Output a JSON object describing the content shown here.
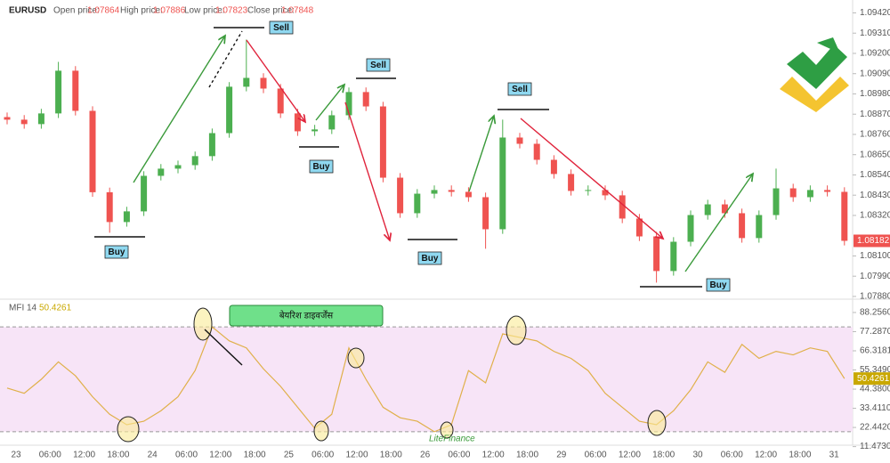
{
  "chart_data": {
    "type": "candlestick",
    "symbol": "EURUSD",
    "info": [
      {
        "label": "Open price:",
        "value": 1.07864
      },
      {
        "label": "High price:",
        "value": 1.07886
      },
      {
        "label": "Low price:",
        "value": 1.07823
      },
      {
        "label": "Close price:",
        "value": 1.07848
      }
    ],
    "up_color": "#4caf50",
    "down_color": "#ef5350",
    "ylim": [
      1.0787,
      1.0949
    ],
    "yticks": [
      {
        "value": 1.0942,
        "label": "1.09420"
      },
      {
        "value": 1.0931,
        "label": "1.09310"
      },
      {
        "value": 1.092,
        "label": "1.09200"
      },
      {
        "value": 1.0909,
        "label": "1.09090"
      },
      {
        "value": 1.0898,
        "label": "1.08980"
      },
      {
        "value": 1.0887,
        "label": "1.08870"
      },
      {
        "value": 1.0876,
        "label": "1.08760"
      },
      {
        "value": 1.0865,
        "label": "1.08650"
      },
      {
        "value": 1.0854,
        "label": "1.08540"
      },
      {
        "value": 1.0843,
        "label": "1.08430"
      },
      {
        "value": 1.0832,
        "label": "1.08320"
      },
      {
        "value": 1.081,
        "label": "1.08100"
      },
      {
        "value": 1.0799,
        "label": "1.07990"
      },
      {
        "value": 1.0788,
        "label": "1.07880"
      }
    ],
    "x_labels": [
      "23",
      "06:00",
      "12:00",
      "18:00",
      "24",
      "06:00",
      "12:00",
      "18:00",
      "25",
      "06:00",
      "12:00",
      "18:00",
      "26",
      "06:00",
      "12:00",
      "18:00",
      "29",
      "06:00",
      "12:00",
      "18:00",
      "30",
      "06:00",
      "12:00",
      "18:00",
      "31"
    ],
    "candles": [
      [
        1.08854,
        1.08879,
        1.08815,
        1.0884
      ],
      [
        1.0884,
        1.08865,
        1.08791,
        1.08816
      ],
      [
        1.08816,
        1.08899,
        1.08791,
        1.08874
      ],
      [
        1.08874,
        1.09154,
        1.08849,
        1.09106
      ],
      [
        1.09106,
        1.09131,
        1.08863,
        1.08888
      ],
      [
        1.08888,
        1.08913,
        1.08421,
        1.08446
      ],
      [
        1.08446,
        1.08471,
        1.08226,
        1.08284
      ],
      [
        1.08284,
        1.08367,
        1.08259,
        1.08342
      ],
      [
        1.08342,
        1.0856,
        1.08317,
        1.08535
      ],
      [
        1.08535,
        1.08599,
        1.0851,
        1.08574
      ],
      [
        1.08574,
        1.08618,
        1.08549,
        1.08593
      ],
      [
        1.08593,
        1.08667,
        1.08568,
        1.08642
      ],
      [
        1.08642,
        1.08792,
        1.08617,
        1.08767
      ],
      [
        1.08767,
        1.09044,
        1.08742,
        1.09019
      ],
      [
        1.09019,
        1.09275,
        1.08994,
        1.09067
      ],
      [
        1.09067,
        1.09092,
        1.08984,
        1.09009
      ],
      [
        1.09009,
        1.09034,
        1.08849,
        1.08874
      ],
      [
        1.08874,
        1.08899,
        1.08752,
        1.08777
      ],
      [
        1.08777,
        1.08812,
        1.08752,
        1.08787
      ],
      [
        1.08787,
        1.08889,
        1.08762,
        1.08864
      ],
      [
        1.08864,
        1.09015,
        1.08839,
        1.0899
      ],
      [
        1.0899,
        1.09015,
        1.08887,
        1.08912
      ],
      [
        1.08912,
        1.08937,
        1.085,
        1.08525
      ],
      [
        1.08525,
        1.0855,
        1.08307,
        1.08332
      ],
      [
        1.08332,
        1.08463,
        1.08307,
        1.08438
      ],
      [
        1.08438,
        1.08483,
        1.08413,
        1.08458
      ],
      [
        1.08458,
        1.08483,
        1.08423,
        1.08448
      ],
      [
        1.08448,
        1.08473,
        1.08394,
        1.08419
      ],
      [
        1.08419,
        1.08444,
        1.08139,
        1.08245
      ],
      [
        1.08245,
        1.0884,
        1.0822,
        1.08743
      ],
      [
        1.08743,
        1.08768,
        1.08684,
        1.08709
      ],
      [
        1.08709,
        1.08734,
        1.08597,
        1.08622
      ],
      [
        1.08622,
        1.08647,
        1.0852,
        1.08545
      ],
      [
        1.08545,
        1.0857,
        1.08428,
        1.08453
      ],
      [
        1.08453,
        1.08483,
        1.08428,
        1.08458
      ],
      [
        1.08458,
        1.08483,
        1.08404,
        1.08429
      ],
      [
        1.08429,
        1.08454,
        1.08278,
        1.08303
      ],
      [
        1.08303,
        1.08328,
        1.08181,
        1.08206
      ],
      [
        1.08206,
        1.08231,
        1.07955,
        1.08018
      ],
      [
        1.08018,
        1.08202,
        1.07993,
        1.08177
      ],
      [
        1.08177,
        1.08347,
        1.08152,
        1.08322
      ],
      [
        1.08322,
        1.08405,
        1.08297,
        1.0838
      ],
      [
        1.0838,
        1.08405,
        1.08307,
        1.08332
      ],
      [
        1.08332,
        1.08357,
        1.08172,
        1.08197
      ],
      [
        1.08197,
        1.08347,
        1.08172,
        1.08322
      ],
      [
        1.08322,
        1.08574,
        1.08297,
        1.08467
      ],
      [
        1.08467,
        1.08492,
        1.08394,
        1.08419
      ],
      [
        1.08419,
        1.08483,
        1.08394,
        1.08458
      ],
      [
        1.08458,
        1.08483,
        1.08423,
        1.08448
      ],
      [
        1.08448,
        1.08473,
        1.08157,
        1.08182
      ]
    ],
    "annotations": [
      "Sell",
      "Sell",
      "Sell",
      "Buy",
      "Buy",
      "Buy",
      "Buy"
    ],
    "divergence_label": "बेयरिश डाइवर्जेंस",
    "watermark": "LiteFinance",
    "mfi": {
      "name": "MFI 14",
      "color": "#e0b04a",
      "band_color": "#f7e4f7",
      "levels": [
        80,
        20
      ],
      "ylim": [
        9.74,
        94.86
      ],
      "yticks": [
        {
          "value": 88.256,
          "label": "88.2560"
        },
        {
          "value": 77.287,
          "label": "77.2870"
        },
        66.3181,
        {
          "value": 55.349,
          "label": "55.3490"
        },
        {
          "value": 44.38,
          "label": "44.3800"
        },
        {
          "value": 33.411,
          "label": "33.4110"
        },
        {
          "value": 22.442,
          "label": "22.4420"
        },
        {
          "value": 11.473,
          "label": "11.4730"
        }
      ],
      "values": [
        45,
        42,
        50,
        60,
        52,
        40,
        30,
        24,
        26,
        32,
        40,
        55,
        80,
        72,
        68,
        56,
        46,
        34,
        22,
        30,
        68,
        50,
        34,
        28,
        26,
        20,
        24,
        55,
        48,
        76,
        74,
        72,
        66,
        62,
        55,
        42,
        34,
        26,
        24,
        32,
        44,
        60,
        54,
        70,
        62,
        66,
        64,
        68,
        66,
        50.4261
      ]
    }
  }
}
